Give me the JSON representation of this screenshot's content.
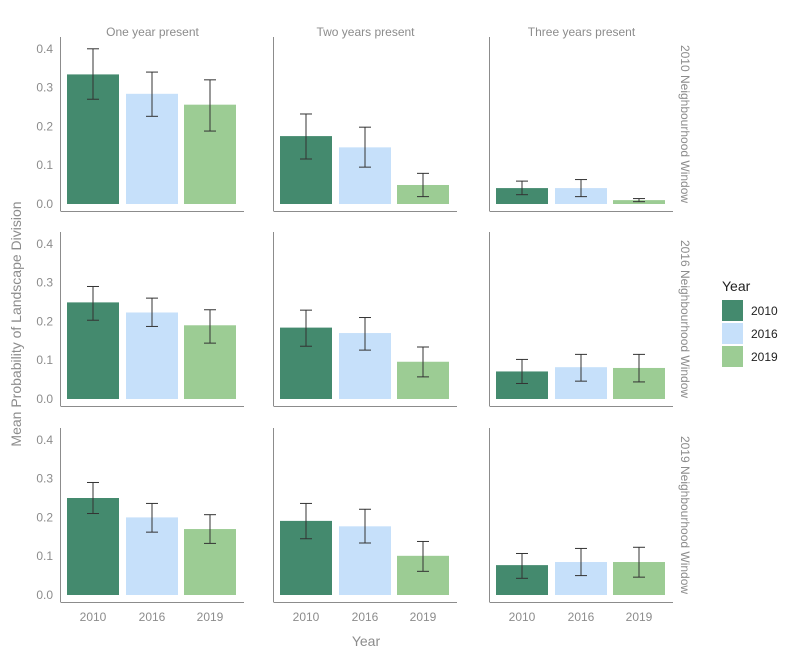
{
  "chart_data": {
    "type": "bar",
    "ylabel": "Mean Probability of Landscape Division",
    "xlabel": "Year",
    "categories": [
      "2010",
      "2016",
      "2019"
    ],
    "ylim": [
      0,
      0.42
    ],
    "yticks": [
      0.0,
      0.1,
      0.2,
      0.3,
      0.4
    ],
    "ytick_labels": [
      "0.0",
      "0.1",
      "0.2",
      "0.3",
      "0.4"
    ],
    "columns": [
      "One year present",
      "Two years present",
      "Three years present"
    ],
    "rows": [
      "2010 Neighbourhood Window",
      "2016 Neighbourhood Window",
      "2019 Neighbourhood Window"
    ],
    "legend": {
      "title": "Year",
      "position": "right",
      "items": [
        {
          "label": "2010",
          "color": "#448a6e"
        },
        {
          "label": "2016",
          "color": "#c6e0fa"
        },
        {
          "label": "2019",
          "color": "#9ccc94"
        }
      ]
    },
    "panels": [
      {
        "row": "2010 Neighbourhood Window",
        "column": "One year present",
        "values": [
          0.334,
          0.284,
          0.256
        ],
        "lower": [
          0.27,
          0.226,
          0.188
        ],
        "upper": [
          0.4,
          0.34,
          0.32
        ]
      },
      {
        "row": "2010 Neighbourhood Window",
        "column": "Two years present",
        "values": [
          0.175,
          0.146,
          0.049
        ],
        "lower": [
          0.116,
          0.095,
          0.019
        ],
        "upper": [
          0.232,
          0.198,
          0.079
        ]
      },
      {
        "row": "2010 Neighbourhood Window",
        "column": "Three years present",
        "values": [
          0.041,
          0.041,
          0.01
        ],
        "lower": [
          0.024,
          0.019,
          0.006
        ],
        "upper": [
          0.059,
          0.063,
          0.014
        ]
      },
      {
        "row": "2016 Neighbourhood Window",
        "column": "One year present",
        "values": [
          0.249,
          0.223,
          0.19
        ],
        "lower": [
          0.203,
          0.187,
          0.144
        ],
        "upper": [
          0.29,
          0.26,
          0.23
        ]
      },
      {
        "row": "2016 Neighbourhood Window",
        "column": "Two years present",
        "values": [
          0.184,
          0.17,
          0.096
        ],
        "lower": [
          0.136,
          0.126,
          0.057
        ],
        "upper": [
          0.229,
          0.21,
          0.134
        ]
      },
      {
        "row": "2016 Neighbourhood Window",
        "column": "Three years present",
        "values": [
          0.071,
          0.082,
          0.08
        ],
        "lower": [
          0.04,
          0.046,
          0.044
        ],
        "upper": [
          0.102,
          0.115,
          0.115
        ]
      },
      {
        "row": "2019 Neighbourhood Window",
        "column": "One year present",
        "values": [
          0.25,
          0.2,
          0.17
        ],
        "lower": [
          0.21,
          0.162,
          0.133
        ],
        "upper": [
          0.29,
          0.236,
          0.207
        ]
      },
      {
        "row": "2019 Neighbourhood Window",
        "column": "Two years present",
        "values": [
          0.191,
          0.177,
          0.101
        ],
        "lower": [
          0.145,
          0.134,
          0.061
        ],
        "upper": [
          0.236,
          0.221,
          0.138
        ]
      },
      {
        "row": "2019 Neighbourhood Window",
        "column": "Three years present",
        "values": [
          0.077,
          0.085,
          0.085
        ],
        "lower": [
          0.043,
          0.05,
          0.046
        ],
        "upper": [
          0.107,
          0.12,
          0.123
        ]
      }
    ]
  }
}
